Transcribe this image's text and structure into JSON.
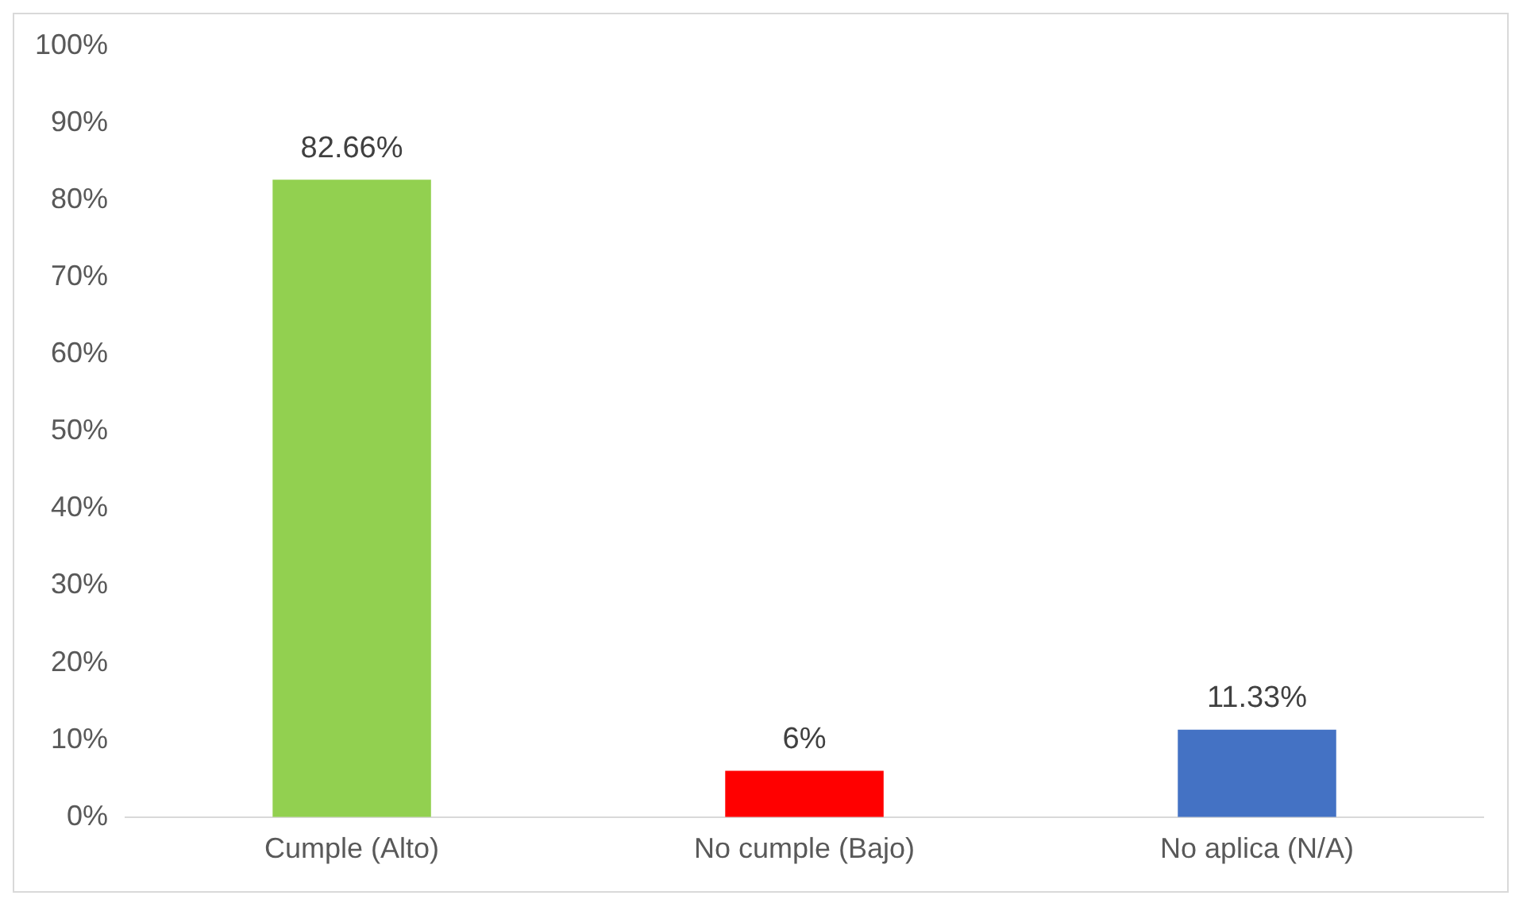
{
  "chart_data": {
    "type": "bar",
    "categories": [
      "Cumple (Alto)",
      "No cumple (Bajo)",
      "No aplica (N/A)"
    ],
    "values": [
      82.66,
      6,
      11.33
    ],
    "colors": [
      "#92d050",
      "#ff0000",
      "#4472c4"
    ],
    "value_labels": [
      "82.66%",
      "6%",
      "11.33%"
    ],
    "ylim": [
      0,
      100
    ],
    "yticks": [
      {
        "value": 0,
        "label": "0%"
      },
      {
        "value": 10,
        "label": "10%"
      },
      {
        "value": 20,
        "label": "20%"
      },
      {
        "value": 30,
        "label": "30%"
      },
      {
        "value": 40,
        "label": "40%"
      },
      {
        "value": 50,
        "label": "50%"
      },
      {
        "value": 60,
        "label": "60%"
      },
      {
        "value": 70,
        "label": "70%"
      },
      {
        "value": 80,
        "label": "80%"
      },
      {
        "value": 90,
        "label": "90%"
      },
      {
        "value": 100,
        "label": "100%"
      }
    ]
  }
}
